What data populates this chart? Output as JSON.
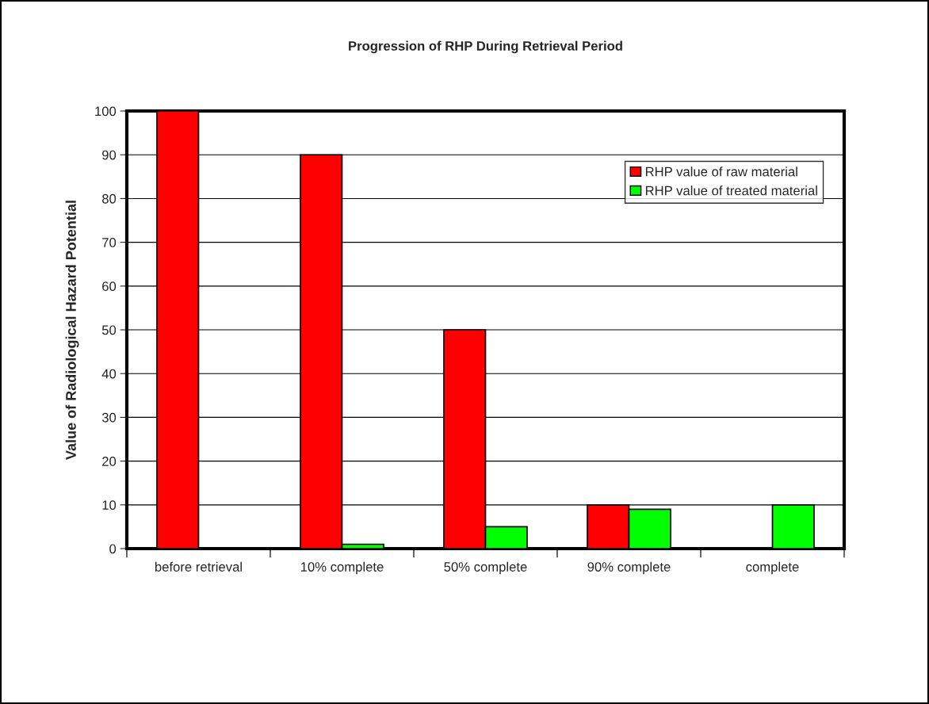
{
  "chart_data": {
    "type": "bar",
    "title": "Progression of RHP During Retrieval Period",
    "ylabel": "Value of Radiological Hazard Potential",
    "categories": [
      "before retrieval",
      "10% complete",
      "50% complete",
      "90% complete",
      "complete"
    ],
    "series": [
      {
        "name": "RHP value of raw material",
        "color": "#ff0000",
        "values": [
          100,
          90,
          50,
          10,
          0
        ]
      },
      {
        "name": "RHP value of treated material",
        "color": "#00ff00",
        "values": [
          0,
          1,
          5,
          9,
          10
        ]
      }
    ],
    "ylim": [
      0,
      100
    ],
    "yticks": [
      0,
      10,
      20,
      30,
      40,
      50,
      60,
      70,
      80,
      90,
      100
    ],
    "grid": "y",
    "legend": "top right"
  }
}
